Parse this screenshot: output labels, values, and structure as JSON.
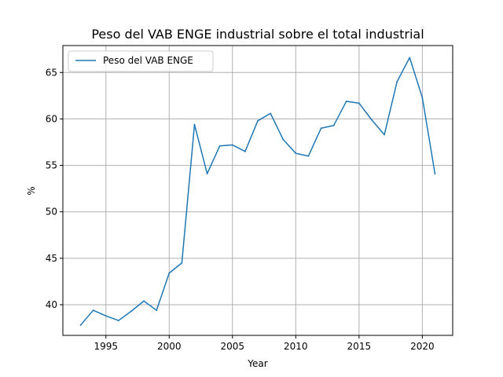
{
  "chart_data": {
    "type": "line",
    "title": "Peso del VAB ENGE industrial sobre el total industrial",
    "xlabel": "Year",
    "ylabel": "%",
    "xlim": [
      1991.6,
      2022.4
    ],
    "ylim": [
      36.7,
      67.9
    ],
    "x_ticks": [
      1995,
      2000,
      2005,
      2010,
      2015,
      2020
    ],
    "y_ticks": [
      40,
      45,
      50,
      55,
      60,
      65
    ],
    "grid": true,
    "legend_position": "top-left",
    "series": [
      {
        "name": "Peso del VAB ENGE",
        "color": "#1f77b4",
        "x": [
          1993,
          1994,
          1995,
          1996,
          1997,
          1998,
          1999,
          2000,
          2001,
          2002,
          2003,
          2004,
          2005,
          2006,
          2007,
          2008,
          2009,
          2010,
          2011,
          2012,
          2013,
          2014,
          2015,
          2016,
          2017,
          2018,
          2019,
          2020,
          2021
        ],
        "values": [
          37.8,
          39.4,
          38.8,
          38.3,
          39.3,
          40.4,
          39.4,
          43.4,
          44.5,
          59.4,
          54.1,
          57.1,
          57.2,
          56.5,
          59.8,
          60.6,
          57.8,
          56.3,
          56.0,
          59.0,
          59.3,
          61.9,
          61.7,
          59.9,
          58.3,
          64.0,
          66.6,
          62.3,
          54.1
        ]
      }
    ]
  }
}
